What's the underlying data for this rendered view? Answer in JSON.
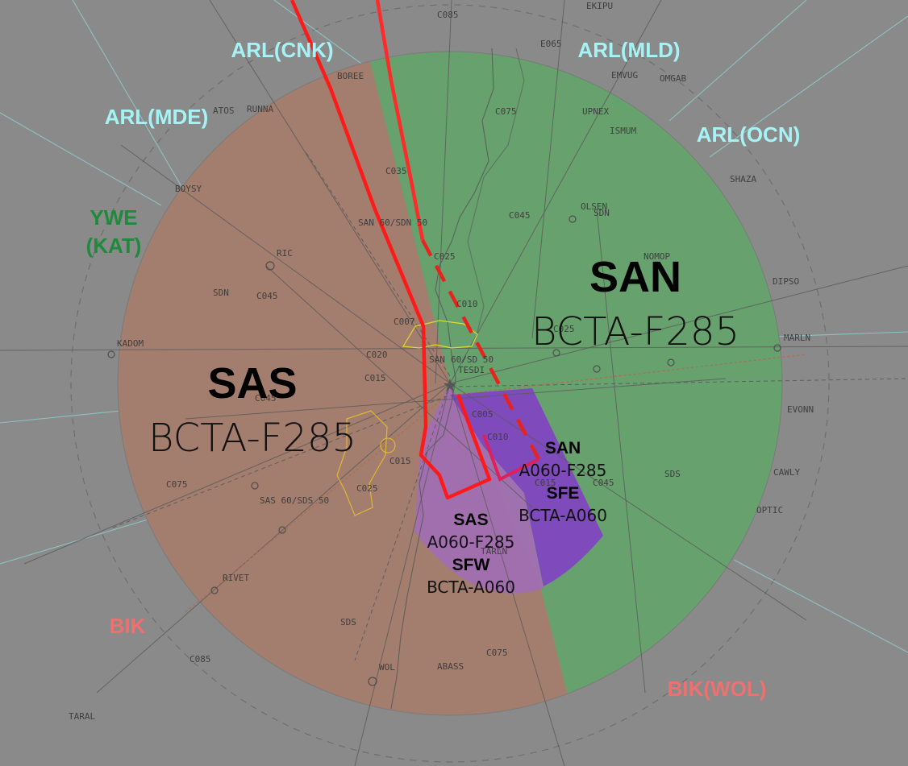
{
  "external_sectors": {
    "arl_cnk": "ARL(CNK)",
    "arl_mld": "ARL(MLD)",
    "arl_mde": "ARL(MDE)",
    "arl_ocn": "ARL(OCN)",
    "ywe_1": "YWE",
    "ywe_2": "(KAT)",
    "bik": "BIK",
    "bik_wol": "BIK(WOL)"
  },
  "sectors": {
    "sas": {
      "name": "SAS",
      "limits": "BCTA-F285"
    },
    "san": {
      "name": "SAN",
      "limits": "BCTA-F285"
    },
    "san_sub": {
      "name": "SAN",
      "limits": "A060-F285"
    },
    "sfe": {
      "name": "SFE",
      "limits": "BCTA-A060"
    },
    "sas_sub": {
      "name": "SAS",
      "limits": "A060-F285"
    },
    "sfw": {
      "name": "SFW",
      "limits": "BCTA-A060"
    }
  },
  "waypoints": {
    "c085_n": "C085",
    "ekipu": "EKIPU",
    "e065": "E065",
    "emvug": "EMVUG",
    "omgab": "OMGAB",
    "upnex": "UPNEX",
    "ismum": "ISMUM",
    "boree": "BOREE",
    "c075_n": "C075",
    "atos": "ATOS",
    "runna": "RUNNA",
    "shaza": "SHAZA",
    "boysy": "BOYSY",
    "c035": "C035",
    "c045_n": "C045",
    "olsen": "OLSEN",
    "sdn_ne": "SDN",
    "san_ring": "SAN 60/SDN 50",
    "c025_n": "C025",
    "nomop": "NOMOP",
    "dipso": "DIPSO",
    "ric": "RIC",
    "sdn_w": "SDN",
    "c045_w": "C045",
    "c010_n": "C010",
    "c007": "C007",
    "c025_e": "C025",
    "marln": "MARLN",
    "kadom": "KADOM",
    "c020": "C020",
    "sas_ring": "60/SD 50",
    "san_inner": "SAN",
    "tesdi": "TESDI",
    "c015_w": "C015",
    "c045_sw": "C045",
    "evonn": "EVONN",
    "c005": "C005",
    "c010_s": "C010",
    "c015_s": "C015",
    "c015_se": "C015",
    "c045_se": "C045",
    "cawly": "CAWLY",
    "sds_e": "SDS",
    "c075_w": "C075",
    "c025_s": "C025",
    "optic": "OPTIC",
    "sas_60": "SAS 60/SDS 50",
    "rivet": "RIVET",
    "tarln": "TARLN",
    "sds_s": "SDS",
    "c075_s": "C075",
    "c085_sw": "C085",
    "wol": "WOL",
    "abass": "ABASS",
    "taral": "TARAL"
  }
}
